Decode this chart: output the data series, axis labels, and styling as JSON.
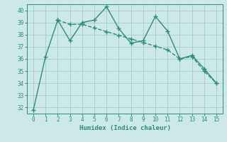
{
  "line1_x": [
    0,
    1,
    2,
    3,
    4,
    5,
    6,
    7,
    8,
    9,
    10,
    11,
    12,
    13,
    14,
    15
  ],
  "line1_y": [
    31.8,
    36.2,
    39.2,
    37.5,
    39.0,
    39.2,
    40.3,
    38.5,
    37.3,
    37.5,
    39.5,
    38.3,
    36.0,
    36.3,
    35.2,
    34.0
  ],
  "line2_x": [
    2,
    3,
    4,
    5,
    6,
    7,
    8,
    9,
    10,
    11,
    12,
    13,
    14,
    15
  ],
  "line2_y": [
    39.2,
    38.85,
    38.85,
    38.55,
    38.25,
    37.95,
    37.65,
    37.35,
    37.05,
    36.75,
    36.0,
    36.2,
    35.0,
    34.0
  ],
  "color": "#2e8b7a",
  "bg_color": "#cce8e8",
  "grid_color": "#aacfcf",
  "xlabel": "Humidex (Indice chaleur)",
  "ylim": [
    31.5,
    40.5
  ],
  "xlim": [
    -0.5,
    15.5
  ],
  "yticks": [
    32,
    33,
    34,
    35,
    36,
    37,
    38,
    39,
    40
  ],
  "xticks": [
    0,
    1,
    2,
    3,
    4,
    5,
    6,
    7,
    8,
    9,
    10,
    11,
    12,
    13,
    14,
    15
  ],
  "marker": "+",
  "linewidth": 1.0,
  "markersize": 4
}
